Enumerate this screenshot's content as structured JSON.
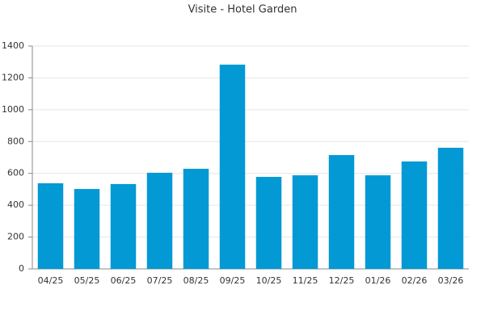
{
  "chart_data": {
    "type": "bar",
    "title": "Visite - Hotel Garden",
    "categories": [
      "04/25",
      "05/25",
      "06/25",
      "07/25",
      "08/25",
      "09/25",
      "10/25",
      "11/25",
      "12/25",
      "01/26",
      "02/26",
      "03/26"
    ],
    "values": [
      538,
      502,
      533,
      604,
      629,
      1283,
      578,
      588,
      715,
      588,
      675,
      761
    ],
    "color": "#0399d4",
    "ylim": [
      0,
      1400
    ],
    "yticks": [
      0,
      200,
      400,
      600,
      800,
      1000,
      1200,
      1400
    ],
    "grid": true
  }
}
